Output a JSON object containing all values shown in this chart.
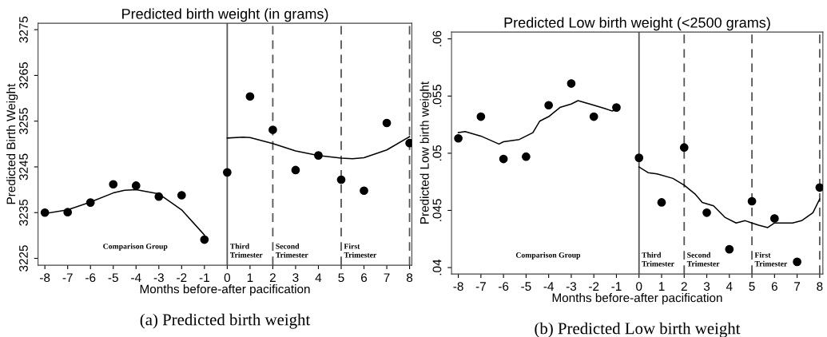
{
  "chart_data": [
    {
      "type": "scatter",
      "title": "Predicted birth weight (in grams)",
      "xlabel": "Months before-after pacification",
      "ylabel": "Predicted Birth Weight",
      "x": [
        -8,
        -7,
        -6,
        -5,
        -4,
        -3,
        -2,
        -1,
        0,
        1,
        2,
        3,
        4,
        5,
        6,
        7,
        8
      ],
      "series": [
        {
          "type": "scatter",
          "color": "#000000",
          "marker": "circle",
          "values": [
            3235.0,
            3235.1,
            3237.2,
            3241.2,
            3240.9,
            3238.5,
            3238.8,
            3229.1,
            3243.8,
            3260.4,
            3253.1,
            3244.3,
            3247.5,
            3242.2,
            3239.8,
            3254.6,
            3250.2
          ]
        },
        {
          "type": "line",
          "color": "#000000",
          "x": [
            -8,
            -7,
            -6,
            -5,
            -4.5,
            -4,
            -3,
            -2,
            -1
          ],
          "values": [
            3234.8,
            3235.6,
            3237.3,
            3239.3,
            3239.9,
            3240.0,
            3239.1,
            3235.6,
            3230.1
          ]
        },
        {
          "type": "line",
          "color": "#000000",
          "x": [
            0,
            0.7,
            1,
            2,
            3,
            4,
            5,
            5.5,
            6,
            7,
            8
          ],
          "values": [
            3251.3,
            3251.5,
            3251.4,
            3250.1,
            3248.5,
            3247.5,
            3246.9,
            3246.8,
            3247.0,
            3248.7,
            3251.6
          ]
        }
      ],
      "xlim": [
        -8.3,
        8.1
      ],
      "ylim": [
        3223.5,
        3276.4
      ],
      "xticks": [
        -8,
        -7,
        -6,
        -5,
        -4,
        -3,
        -2,
        -1,
        0,
        1,
        2,
        3,
        4,
        5,
        6,
        7,
        8
      ],
      "yticks": [
        3225,
        3235,
        3245,
        3255,
        3265,
        3275
      ],
      "ref_lines": [
        {
          "axis": "x",
          "value": 0,
          "line_style": "solid",
          "color": "#555555",
          "label": "Third\nTrimester"
        },
        {
          "axis": "x",
          "value": 2,
          "line_style": "dashed",
          "color": "#555555",
          "label": "Second\nTrimester"
        },
        {
          "axis": "x",
          "value": 5,
          "line_style": "dashed",
          "color": "#555555",
          "label": "First\nTrimester"
        },
        {
          "axis": "x",
          "value": 8,
          "line_style": "dashed",
          "color": "#555555"
        }
      ],
      "annotations": [
        "Comparison Group",
        "(a) Predicted birth weight"
      ],
      "grid": false,
      "legend": false
    },
    {
      "type": "scatter",
      "title": "Predicted Low birth weight (<2500 grams)",
      "xlabel": "Months before-after pacification",
      "ylabel": "Predicted Low birth weight",
      "x": [
        -8,
        -7,
        -6,
        -5,
        -4,
        -3,
        -2,
        -1,
        0,
        1,
        2,
        3,
        4,
        5,
        6,
        7,
        8
      ],
      "series": [
        {
          "type": "scatter",
          "color": "#000000",
          "marker": "circle",
          "values": [
            0.0513,
            0.0532,
            0.0495,
            0.0497,
            0.0542,
            0.0561,
            0.0532,
            0.054,
            0.0496,
            0.0457,
            0.0505,
            0.0448,
            0.0416,
            0.0458,
            0.0443,
            0.0405,
            0.047
          ]
        },
        {
          "type": "line",
          "color": "#000000",
          "x": [
            -8,
            -7.7,
            -7,
            -6.2,
            -6,
            -5.3,
            -5,
            -4.7,
            -4.4,
            -4,
            -3.5,
            -3,
            -2.7,
            -2,
            -1.5,
            -1.2,
            -1
          ],
          "values": [
            0.0518,
            0.0519,
            0.0515,
            0.0508,
            0.051,
            0.0512,
            0.0515,
            0.0518,
            0.0528,
            0.0532,
            0.054,
            0.0543,
            0.0546,
            0.0542,
            0.0539,
            0.0537,
            0.0538
          ]
        },
        {
          "type": "line",
          "color": "#000000",
          "x": [
            0,
            0.4,
            0.8,
            1.5,
            2,
            2.5,
            2.8,
            3.3,
            3.8,
            4.3,
            4.7,
            5,
            5.3,
            5.7,
            6,
            6.8,
            7.2,
            7.7,
            8
          ],
          "values": [
            0.0488,
            0.0483,
            0.0482,
            0.0478,
            0.0472,
            0.0464,
            0.0457,
            0.0454,
            0.0444,
            0.0439,
            0.0441,
            0.0439,
            0.0437,
            0.0435,
            0.0439,
            0.0439,
            0.0441,
            0.0448,
            0.046
          ]
        }
      ],
      "xlim": [
        -8.3,
        8.14
      ],
      "ylim": [
        0.03944,
        0.0606
      ],
      "xticks": [
        -8,
        -7,
        -6,
        -5,
        -4,
        -3,
        -2,
        -1,
        0,
        1,
        2,
        3,
        4,
        5,
        6,
        7,
        8
      ],
      "yticks": [
        {
          "value": 0.04,
          "label": ".04"
        },
        {
          "value": 0.045,
          "label": ".045"
        },
        {
          "value": 0.05,
          "label": ".05"
        },
        {
          "value": 0.055,
          "label": ".055"
        },
        {
          "value": 0.06,
          "label": ".06"
        }
      ],
      "ref_lines": [
        {
          "axis": "x",
          "value": 0,
          "line_style": "solid",
          "color": "#555555",
          "label": "Third\nTrimester"
        },
        {
          "axis": "x",
          "value": 2,
          "line_style": "dashed",
          "color": "#555555",
          "label": "Second\nTrimester"
        },
        {
          "axis": "x",
          "value": 5,
          "line_style": "dashed",
          "color": "#555555",
          "label": "First\nTrimester"
        },
        {
          "axis": "x",
          "value": 8,
          "line_style": "dashed",
          "color": "#555555"
        }
      ],
      "annotations": [
        "Comparison Group",
        "(b) Predicted Low birth weight"
      ],
      "grid": false,
      "legend": false
    }
  ]
}
